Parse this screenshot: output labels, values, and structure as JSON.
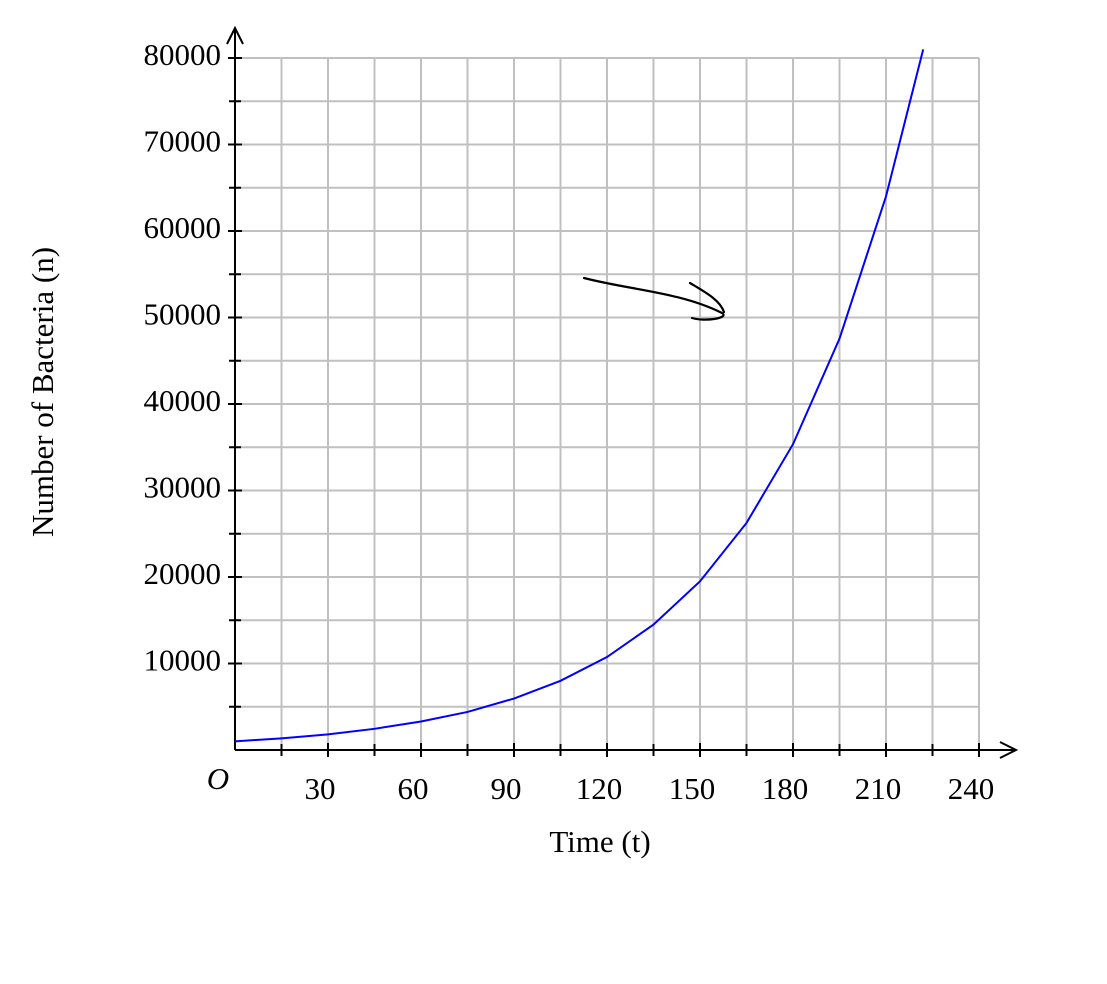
{
  "chart_data": {
    "type": "line",
    "x_label": "Time (t)",
    "y_label": "Number of Bacteria (n)",
    "origin_label": "O",
    "x": [
      0,
      15,
      30,
      45,
      60,
      75,
      90,
      105,
      120,
      135,
      150,
      165,
      180,
      195,
      210,
      222
    ],
    "values": [
      1000,
      1350,
      1800,
      2450,
      3300,
      4400,
      5950,
      8000,
      10750,
      14500,
      19500,
      26250,
      35350,
      47550,
      64000,
      81000
    ],
    "color": "#0000ff",
    "xlim": [
      0,
      240
    ],
    "ylim": [
      0,
      80000
    ],
    "xticks": [
      30,
      60,
      90,
      120,
      150,
      180,
      210,
      240
    ],
    "yticks": [
      10000,
      20000,
      30000,
      40000,
      50000,
      60000,
      70000,
      80000
    ],
    "grid": true
  }
}
